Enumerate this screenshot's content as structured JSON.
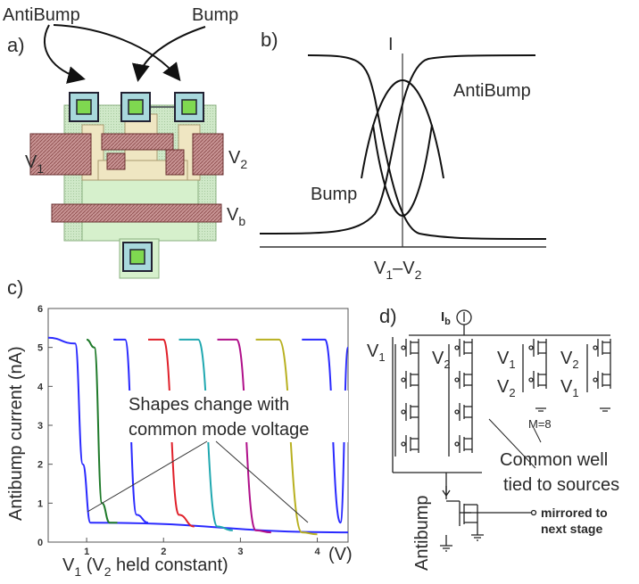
{
  "panel_a": {
    "label": "a)",
    "callout_antibump": "AntiBump",
    "callout_bump": "Bump",
    "v1": "V",
    "v1_sub": "1",
    "v2": "V",
    "v2_sub": "2",
    "vb": "V",
    "vb_sub": "b"
  },
  "panel_b": {
    "label": "b)",
    "current_axis": "I",
    "curve_antibump": "AntiBump",
    "curve_bump": "Bump",
    "xlabel_v1": "V",
    "xlabel_sub1": "1",
    "xlabel_dash": "–V",
    "xlabel_sub2": "2"
  },
  "panel_c": {
    "label": "c)",
    "ylabel": "Antibump current (nA)",
    "xlabel_pre": "V",
    "xlabel_sub": "1",
    "xlabel_post": " (V",
    "xlabel_sub2": "2",
    "xlabel_end": " held constant)",
    "x_unit": "(V)",
    "annotation_line1": "Shapes change with",
    "annotation_line2": "common mode voltage",
    "yticks": [
      "0",
      "1",
      "2",
      "3",
      "4",
      "5",
      "6"
    ],
    "xticks": [
      "1",
      "2",
      "3",
      "4"
    ],
    "series_colors": [
      "#2a2aff",
      "#1f7a2a",
      "#2a2aff",
      "#e0202a",
      "#20a8b0",
      "#b0108a",
      "#b8b020",
      "#2a2aff"
    ]
  },
  "chart_data": {
    "type": "line",
    "xlabel": "V1 (V2 held constant)",
    "ylabel": "Antibump current (nA)",
    "xlim": [
      0.5,
      4.4
    ],
    "ylim": [
      0,
      6
    ],
    "series": [
      {
        "x": [
          0.5,
          0.85,
          0.95,
          1.05,
          4.4
        ],
        "y": [
          5.25,
          5.1,
          2.0,
          0.5,
          0.25
        ]
      },
      {
        "x": [
          1.0,
          1.1,
          1.2,
          1.3,
          1.4
        ],
        "y": [
          5.2,
          5.0,
          1.0,
          0.5,
          0.5
        ]
      },
      {
        "x": [
          1.35,
          1.5,
          1.65,
          1.8
        ],
        "y": [
          5.2,
          5.2,
          0.7,
          0.5
        ]
      },
      {
        "x": [
          1.8,
          2.0,
          2.2,
          2.4
        ],
        "y": [
          5.2,
          5.2,
          0.7,
          0.4
        ]
      },
      {
        "x": [
          2.2,
          2.45,
          2.7,
          2.9
        ],
        "y": [
          5.2,
          5.2,
          0.4,
          0.3
        ]
      },
      {
        "x": [
          2.7,
          2.95,
          3.2,
          3.4
        ],
        "y": [
          5.2,
          5.2,
          0.3,
          0.25
        ]
      },
      {
        "x": [
          3.2,
          3.5,
          3.8,
          4.0
        ],
        "y": [
          5.2,
          5.2,
          0.25,
          0.2
        ]
      },
      {
        "x": [
          3.8,
          4.1,
          4.3,
          4.4
        ],
        "y": [
          5.2,
          5.2,
          0.5,
          5.0
        ]
      }
    ]
  },
  "panel_d": {
    "label": "d)",
    "ib": "I",
    "ib_sub": "b",
    "v1": "V",
    "v1_sub": "1",
    "v2": "V",
    "v2_sub": "2",
    "m_label": "M=8",
    "common_well_1": "Common well",
    "common_well_2": "tied to sources",
    "antibump": "Antibump",
    "mirror_1": "mirrored to",
    "mirror_2": "next stage"
  }
}
